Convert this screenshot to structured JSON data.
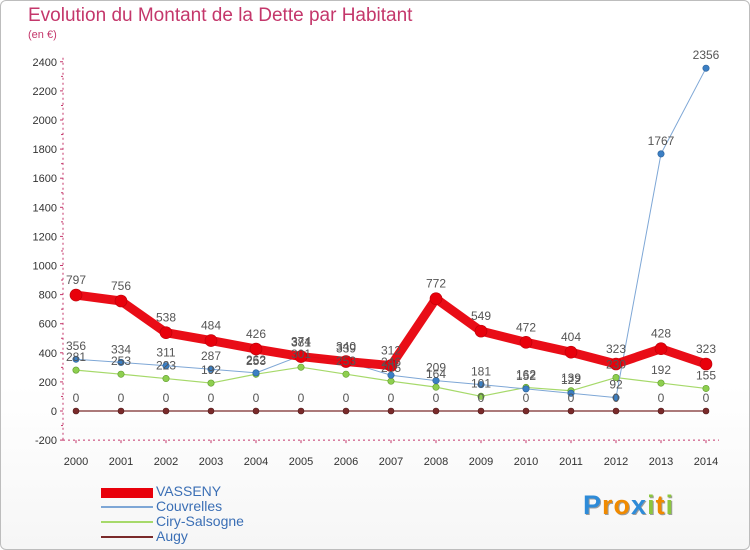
{
  "title": "Evolution du Montant de la Dette par Habitant",
  "subtitle": "(en €)",
  "chart_data": {
    "type": "line",
    "title": "Evolution du Montant de la Dette par Habitant",
    "ylabel": "(en €)",
    "xlabel": "",
    "ylim": [
      -200,
      2400
    ],
    "yticks": [
      -200,
      0,
      200,
      400,
      600,
      800,
      1000,
      1200,
      1400,
      1600,
      1800,
      2000,
      2200,
      2400
    ],
    "categories": [
      "2000",
      "2001",
      "2002",
      "2003",
      "2004",
      "2005",
      "2006",
      "2007",
      "2008",
      "2009",
      "2010",
      "2011",
      "2012",
      "2013",
      "2014"
    ],
    "series": [
      {
        "name": "VASSENY",
        "color": "#e8000b",
        "values": [
          797,
          756,
          538,
          484,
          426,
          374,
          340,
          312,
          772,
          549,
          472,
          404,
          323,
          428,
          323
        ]
      },
      {
        "name": "Couvrelles",
        "color": "#3b7fc4",
        "values": [
          356,
          334,
          311,
          287,
          262,
          381,
          339,
          246,
          209,
          181,
          152,
          122,
          92,
          1767,
          2356
        ]
      },
      {
        "name": "Ciry-Salsogne",
        "color": "#8ecf4f",
        "values": [
          281,
          253,
          223,
          192,
          253,
          301,
          253,
          205,
          164,
          101,
          162,
          139,
          230,
          192,
          155
        ]
      },
      {
        "name": "Augy",
        "color": "#7a2a2a",
        "values": [
          0,
          0,
          0,
          0,
          0,
          0,
          0,
          0,
          0,
          0,
          0,
          0,
          0,
          0,
          0
        ]
      }
    ],
    "legend_position": "bottom-left",
    "grid": false
  },
  "legend": [
    {
      "label": "VASSENY",
      "color": "#e8000b"
    },
    {
      "label": "Couvrelles",
      "color": "#7ea7d6"
    },
    {
      "label": "Ciry-Salsogne",
      "color": "#a6d96a"
    },
    {
      "label": "Augy",
      "color": "#7a2a2a"
    }
  ],
  "logo": {
    "letters": [
      "P",
      "r",
      "o",
      "x",
      "i",
      "t",
      "i"
    ],
    "colors": [
      "#2e8bd8",
      "#f08a00",
      "#f08a00",
      "#2e8bd8",
      "#8cc63f",
      "#f08a00",
      "#8cc63f"
    ]
  }
}
